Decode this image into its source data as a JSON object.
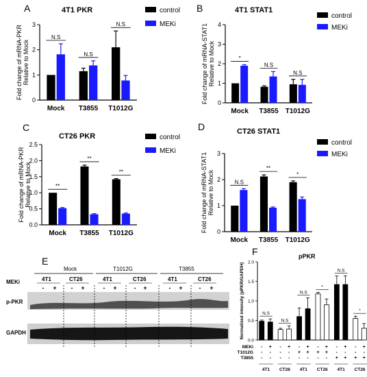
{
  "colors": {
    "control": "#000000",
    "meki": "#1a1aff",
    "white_bar": "#ffffff"
  },
  "panels": [
    {
      "letter": "A",
      "title": "4T1 PKR",
      "ylabel": [
        "Fold change of mRNA-PKR",
        "Relative to Mock"
      ],
      "legend": [
        "control",
        "MEKi"
      ],
      "chart_data": {
        "type": "bar",
        "categories": [
          "Mock",
          "T3855",
          "T1012G"
        ],
        "series": [
          {
            "name": "control",
            "values": [
              1.0,
              1.15,
              2.1
            ],
            "errors": [
              0,
              0.12,
              0.65
            ]
          },
          {
            "name": "MEKi",
            "values": [
              1.82,
              1.38,
              0.78
            ],
            "errors": [
              0.42,
              0.18,
              0.2
            ]
          }
        ],
        "ylim": [
          0,
          3
        ],
        "yticks": [
          "0",
          "1",
          "2",
          "3"
        ],
        "significance": [
          "N.S",
          "N.S",
          "N.S"
        ]
      }
    },
    {
      "letter": "B",
      "title": "4T1 STAT1",
      "ylabel": [
        "Fold change of mRNA-STAT1",
        "Relative to Mock"
      ],
      "legend": [
        "control",
        "MEKi"
      ],
      "chart_data": {
        "type": "bar",
        "categories": [
          "Mock",
          "T3855",
          "T1012G"
        ],
        "series": [
          {
            "name": "control",
            "values": [
              1.0,
              0.82,
              0.95
            ],
            "errors": [
              0,
              0.05,
              0.25
            ]
          },
          {
            "name": "MEKi",
            "values": [
              1.9,
              1.35,
              0.92
            ],
            "errors": [
              0.05,
              0.25,
              0.28
            ]
          }
        ],
        "ylim": [
          0,
          4
        ],
        "yticks": [
          "0",
          "1",
          "2",
          "3",
          "4"
        ],
        "significance": [
          "*",
          "N.S",
          "N.S"
        ]
      }
    },
    {
      "letter": "C",
      "title": "CT26 PKR",
      "ylabel": [
        "Fold change of mRNA-PKR",
        "Relative to Mock"
      ],
      "legend": [
        "control",
        "MEKi"
      ],
      "chart_data": {
        "type": "bar",
        "categories": [
          "Mock",
          "T3855",
          "T1012G"
        ],
        "series": [
          {
            "name": "control",
            "values": [
              1.0,
              1.82,
              1.42
            ],
            "errors": [
              0,
              0.04,
              0.02
            ]
          },
          {
            "name": "MEKi",
            "values": [
              0.52,
              0.33,
              0.35
            ],
            "errors": [
              0.02,
              0.02,
              0.02
            ]
          }
        ],
        "ylim": [
          0,
          2.5
        ],
        "yticks": [
          "0.0",
          "0.5",
          "1.0",
          "1.5",
          "2.0",
          "2.5"
        ],
        "significance": [
          "**",
          "**",
          "**"
        ]
      }
    },
    {
      "letter": "D",
      "title": "CT26 STAT1",
      "ylabel": [
        "Fold change of mRNA-STAT1",
        "Relative to Mock"
      ],
      "legend": [
        "control",
        "MEKi"
      ],
      "chart_data": {
        "type": "bar",
        "categories": [
          "Mock",
          "T3855",
          "T1012G"
        ],
        "series": [
          {
            "name": "control",
            "values": [
              1.0,
              2.12,
              1.9
            ],
            "errors": [
              0,
              0.06,
              0.05
            ]
          },
          {
            "name": "MEKi",
            "values": [
              1.6,
              0.92,
              1.25
            ],
            "errors": [
              0.05,
              0.03,
              0.08
            ]
          }
        ],
        "ylim": [
          0,
          3
        ],
        "yticks": [
          "0",
          "1",
          "2",
          "3"
        ],
        "significance": [
          "N.S",
          "**",
          "*"
        ]
      }
    }
  ],
  "blot": {
    "letter": "E",
    "groups": [
      "Mock",
      "T1012G",
      "T3855"
    ],
    "cells": [
      "4T1",
      "CT26",
      "4T1",
      "CT26",
      "4T1",
      "CT26"
    ],
    "meki_label": "MEKi",
    "signs": [
      "-",
      "+",
      "-",
      "+",
      "-",
      "+",
      "-",
      "+",
      "-",
      "+",
      "-",
      "+"
    ],
    "bands": [
      "p-PKR",
      "GAPDH"
    ]
  },
  "panel_f": {
    "letter": "F",
    "title": "pPKR",
    "ylabel": "Normalized intensity (pPKR/GAPDH)",
    "row_labels": [
      "MEKi",
      "T1012G",
      "T3855"
    ],
    "rows": {
      "meki": [
        "-",
        "+",
        "-",
        "+",
        "-",
        "+",
        "-",
        "+",
        "-",
        "+",
        "-",
        "+"
      ],
      "t1012g": [
        "-",
        "-",
        "-",
        "-",
        "+",
        "+",
        "+",
        "+",
        "-",
        "-",
        "-",
        "-"
      ],
      "t3855": [
        "-",
        "-",
        "-",
        "-",
        "-",
        "-",
        "-",
        "-",
        "+",
        "+",
        "+",
        "+"
      ]
    },
    "cell_labels": [
      "4T1",
      "CT26",
      "4T1",
      "CT26",
      "4T1",
      "CT26"
    ],
    "chart_data": {
      "type": "bar",
      "values": [
        0.48,
        0.46,
        0.27,
        0.28,
        0.6,
        0.8,
        1.18,
        0.9,
        1.42,
        1.42,
        0.55,
        0.3
      ],
      "errors": [
        0.03,
        0.08,
        0.03,
        0.08,
        0.22,
        0.28,
        0.04,
        0.15,
        0.22,
        0.22,
        0.06,
        0.12
      ],
      "fills": [
        "black",
        "black",
        "white",
        "white",
        "black",
        "black",
        "white",
        "white",
        "black",
        "black",
        "white",
        "white"
      ],
      "ylim": [
        0,
        2.0
      ],
      "yticks": [
        "0.0",
        "0.5",
        "1.0",
        "1.5",
        "2.0"
      ],
      "significance": [
        "N.S",
        "N.S",
        "N.S",
        "*",
        "N.S",
        "*"
      ]
    }
  }
}
